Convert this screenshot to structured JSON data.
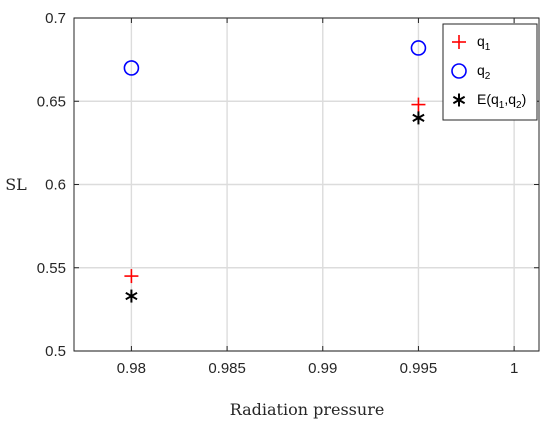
{
  "chart_data": {
    "type": "scatter",
    "xlabel": "Radiation pressure",
    "ylabel": "SL",
    "xlim": [
      0.977,
      1.0013
    ],
    "ylim": [
      0.5,
      0.7
    ],
    "xticks": [
      0.98,
      0.985,
      0.99,
      0.995,
      1
    ],
    "xtick_labels": [
      "0.98",
      "0.985",
      "0.99",
      "0.995",
      "1"
    ],
    "yticks": [
      0.5,
      0.55,
      0.6,
      0.65,
      0.7
    ],
    "ytick_labels": [
      "0.5",
      "0.55",
      "0.6",
      "0.65",
      "0.7"
    ],
    "grid": true,
    "legend_position": "top-right",
    "series": [
      {
        "name": "q1",
        "legend_main": "q",
        "legend_sub": "1",
        "marker": "plus",
        "color": "#ff0000",
        "x": [
          0.98,
          0.995
        ],
        "y": [
          0.545,
          0.648
        ]
      },
      {
        "name": "q2",
        "legend_main": "q",
        "legend_sub": "2",
        "marker": "circle",
        "color": "#0000ff",
        "x": [
          0.98,
          0.995
        ],
        "y": [
          0.67,
          0.682
        ]
      },
      {
        "name": "E(q1,q2)",
        "legend_main": "E(q",
        "legend_sub": "1",
        "legend_mid": ",q",
        "legend_sub2": "2",
        "legend_end": ")",
        "marker": "asterisk",
        "color": "#000000",
        "x": [
          0.98,
          0.995
        ],
        "y": [
          0.533,
          0.64
        ]
      }
    ]
  }
}
